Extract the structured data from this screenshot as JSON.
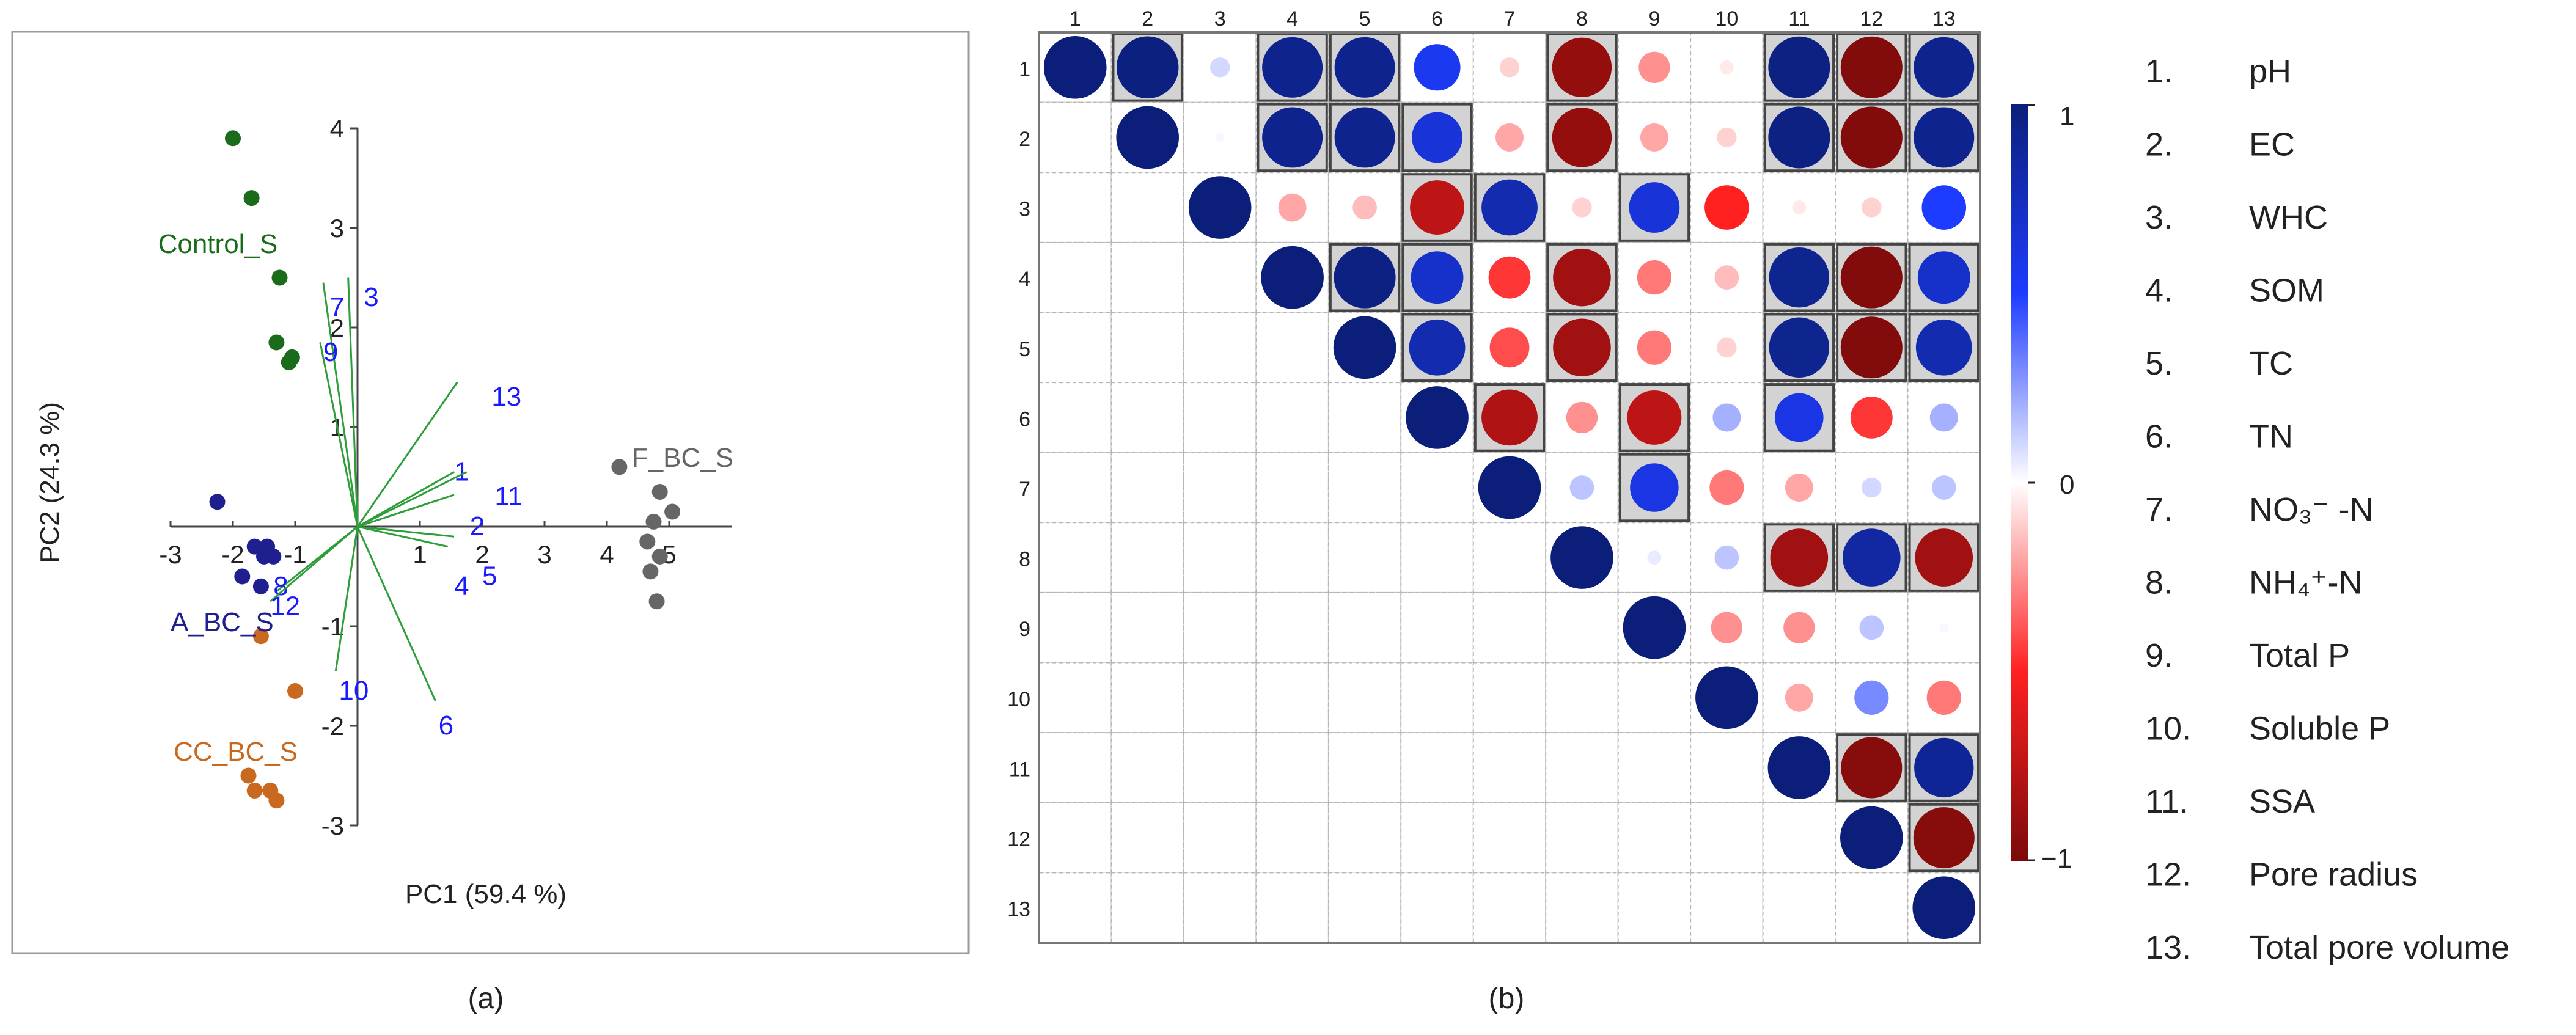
{
  "chart_data": [
    {
      "type": "scatter",
      "panel_label": "(a)",
      "xlabel": "PC1 (59.4 %)",
      "ylabel": "PC2 (24.3 %)",
      "xlim": [
        -3,
        6
      ],
      "ylim": [
        -3,
        4
      ],
      "x_ticks": [
        "-3",
        "-2",
        "-1",
        "1",
        "2",
        "3",
        "4",
        "5"
      ],
      "x_tick_values": [
        -3,
        -2,
        -1,
        1,
        2,
        3,
        4,
        5
      ],
      "y_ticks": [
        "4",
        "3",
        "2",
        "1",
        "-1",
        "-2",
        "-3"
      ],
      "y_tick_values": [
        4,
        3,
        2,
        1,
        -1,
        -2,
        -3
      ],
      "series": [
        {
          "name": "Control_S",
          "color": "#1a6b1a",
          "label_pos": [
            -3.2,
            2.75
          ],
          "points": [
            [
              -2.0,
              3.9
            ],
            [
              -1.7,
              3.3
            ],
            [
              -1.25,
              2.5
            ],
            [
              -1.3,
              1.85
            ],
            [
              -1.05,
              1.7
            ],
            [
              -1.1,
              1.65
            ]
          ]
        },
        {
          "name": "A_BC_S",
          "color": "#1f1f8f",
          "label_pos": [
            -3.0,
            -1.05
          ],
          "points": [
            [
              -2.25,
              0.25
            ],
            [
              -1.65,
              -0.2
            ],
            [
              -1.45,
              -0.2
            ],
            [
              -1.5,
              -0.3
            ],
            [
              -1.85,
              -0.5
            ],
            [
              -1.55,
              -0.6
            ],
            [
              -1.35,
              -0.3
            ]
          ]
        },
        {
          "name": "CC_BC_S",
          "color": "#c8691f",
          "label_pos": [
            -2.95,
            -2.35
          ],
          "points": [
            [
              -1.55,
              -1.1
            ],
            [
              -1.0,
              -1.65
            ],
            [
              -1.75,
              -2.5
            ],
            [
              -1.65,
              -2.65
            ],
            [
              -1.4,
              -2.65
            ],
            [
              -1.3,
              -2.75
            ]
          ]
        },
        {
          "name": "F_BC_S",
          "color": "#666666",
          "label_pos": [
            4.4,
            0.6
          ],
          "points": [
            [
              4.2,
              0.6
            ],
            [
              4.85,
              0.35
            ],
            [
              5.05,
              0.15
            ],
            [
              4.75,
              0.05
            ],
            [
              4.65,
              -0.15
            ],
            [
              4.85,
              -0.3
            ],
            [
              4.7,
              -0.45
            ],
            [
              4.8,
              -0.75
            ]
          ]
        }
      ],
      "loadings_color": "#2e9e3a",
      "loadings_label_color": "#1a1aff",
      "loadings": [
        {
          "label": "1",
          "end": [
            1.55,
            0.55
          ],
          "label_pos": [
            1.55,
            0.55
          ]
        },
        {
          "label": "2",
          "end": [
            1.55,
            0.32
          ],
          "label_pos": [
            1.8,
            0.0
          ]
        },
        {
          "label": "3",
          "end": [
            -0.15,
            2.5
          ],
          "label_pos": [
            0.1,
            2.3
          ]
        },
        {
          "label": "4",
          "end": [
            1.45,
            -0.2
          ],
          "label_pos": [
            1.55,
            -0.6
          ]
        },
        {
          "label": "5",
          "end": [
            1.55,
            -0.1
          ],
          "label_pos": [
            2.0,
            -0.5
          ]
        },
        {
          "label": "6",
          "end": [
            1.25,
            -1.75
          ],
          "label_pos": [
            1.3,
            -2.0
          ]
        },
        {
          "label": "7",
          "end": [
            -0.55,
            2.45
          ],
          "label_pos": [
            -0.45,
            2.2
          ]
        },
        {
          "label": "8",
          "end": [
            -1.3,
            -0.65
          ],
          "label_pos": [
            -1.35,
            -0.6
          ]
        },
        {
          "label": "9",
          "end": [
            -0.6,
            1.85
          ],
          "label_pos": [
            -0.55,
            1.75
          ]
        },
        {
          "label": "10",
          "end": [
            -0.35,
            -1.45
          ],
          "label_pos": [
            -0.3,
            -1.65
          ]
        },
        {
          "label": "11",
          "end": [
            1.75,
            0.55
          ],
          "label_pos": [
            2.2,
            0.3
          ]
        },
        {
          "label": "12",
          "end": [
            -1.4,
            -0.75
          ],
          "label_pos": [
            -1.4,
            -0.8
          ]
        },
        {
          "label": "13",
          "end": [
            1.6,
            1.45
          ],
          "label_pos": [
            2.15,
            1.3
          ]
        }
      ]
    },
    {
      "type": "heatmap",
      "panel_label": "(b)",
      "labels": [
        "1",
        "2",
        "3",
        "4",
        "5",
        "6",
        "7",
        "8",
        "9",
        "10",
        "11",
        "12",
        "13"
      ],
      "legend_title": "",
      "colorbar": {
        "max_label": "1",
        "mid_label": "0",
        "min_label": "−1",
        "colors": [
          "#0b1f7a",
          "#1e3cff",
          "#ffffff",
          "#ff2020",
          "#7a0a0a"
        ]
      },
      "significant_color": "#d3d3d3",
      "matrix": [
        [
          1,
          0.98,
          0.1,
          0.93,
          0.93,
          0.55,
          -0.1,
          -0.9,
          -0.25,
          -0.05,
          0.97,
          -0.97,
          0.93
        ],
        [
          null,
          1,
          0.02,
          0.93,
          0.93,
          0.65,
          -0.2,
          -0.9,
          -0.2,
          -0.1,
          0.97,
          -0.97,
          0.93
        ],
        [
          null,
          null,
          1,
          -0.2,
          -0.15,
          -0.75,
          0.8,
          -0.1,
          0.65,
          -0.5,
          -0.05,
          -0.1,
          0.5
        ],
        [
          null,
          null,
          null,
          1,
          0.97,
          0.7,
          -0.45,
          -0.85,
          -0.3,
          -0.15,
          0.92,
          -0.97,
          0.7
        ],
        [
          null,
          null,
          null,
          null,
          1,
          0.8,
          -0.4,
          -0.85,
          -0.3,
          -0.1,
          0.92,
          -0.97,
          0.8
        ],
        [
          null,
          null,
          null,
          null,
          null,
          1,
          -0.8,
          -0.25,
          -0.75,
          0.2,
          0.6,
          -0.45,
          0.2
        ],
        [
          null,
          null,
          null,
          null,
          null,
          null,
          1,
          0.15,
          0.6,
          -0.3,
          -0.2,
          0.1,
          0.15
        ],
        [
          null,
          null,
          null,
          null,
          null,
          null,
          null,
          1,
          0.05,
          0.15,
          -0.85,
          0.85,
          -0.85
        ],
        [
          null,
          null,
          null,
          null,
          null,
          null,
          null,
          null,
          1,
          -0.25,
          -0.25,
          0.15,
          0.02
        ],
        [
          null,
          null,
          null,
          null,
          null,
          null,
          null,
          null,
          null,
          1,
          -0.2,
          0.3,
          -0.3
        ],
        [
          null,
          null,
          null,
          null,
          null,
          null,
          null,
          null,
          null,
          null,
          1,
          -0.95,
          0.9
        ],
        [
          null,
          null,
          null,
          null,
          null,
          null,
          null,
          null,
          null,
          null,
          null,
          1,
          -0.95
        ],
        [
          null,
          null,
          null,
          null,
          null,
          null,
          null,
          null,
          null,
          null,
          null,
          null,
          1
        ]
      ],
      "significant": [
        [
          0,
          1,
          0,
          1,
          1,
          0,
          0,
          1,
          0,
          0,
          1,
          1,
          1
        ],
        [
          0,
          0,
          0,
          1,
          1,
          1,
          0,
          1,
          0,
          0,
          1,
          1,
          1
        ],
        [
          0,
          0,
          0,
          0,
          0,
          1,
          1,
          0,
          1,
          0,
          0,
          0,
          0
        ],
        [
          0,
          0,
          0,
          0,
          1,
          1,
          0,
          1,
          0,
          0,
          1,
          1,
          1
        ],
        [
          0,
          0,
          0,
          0,
          0,
          1,
          0,
          1,
          0,
          0,
          1,
          1,
          1
        ],
        [
          0,
          0,
          0,
          0,
          0,
          0,
          1,
          0,
          1,
          0,
          1,
          0,
          0
        ],
        [
          0,
          0,
          0,
          0,
          0,
          0,
          0,
          0,
          1,
          0,
          0,
          0,
          0
        ],
        [
          0,
          0,
          0,
          0,
          0,
          0,
          0,
          0,
          0,
          0,
          1,
          1,
          1
        ],
        [
          0,
          0,
          0,
          0,
          0,
          0,
          0,
          0,
          0,
          0,
          0,
          0,
          0
        ],
        [
          0,
          0,
          0,
          0,
          0,
          0,
          0,
          0,
          0,
          0,
          0,
          0,
          0
        ],
        [
          0,
          0,
          0,
          0,
          0,
          0,
          0,
          0,
          0,
          0,
          0,
          1,
          1
        ],
        [
          0,
          0,
          0,
          0,
          0,
          0,
          0,
          0,
          0,
          0,
          0,
          0,
          1
        ],
        [
          0,
          0,
          0,
          0,
          0,
          0,
          0,
          0,
          0,
          0,
          0,
          0,
          0
        ]
      ],
      "variables": [
        {
          "num": "1.",
          "name": "pH"
        },
        {
          "num": "2.",
          "name": "EC"
        },
        {
          "num": "3.",
          "name": "WHC"
        },
        {
          "num": "4.",
          "name": "SOM"
        },
        {
          "num": "5.",
          "name": "TC"
        },
        {
          "num": "6.",
          "name": "TN"
        },
        {
          "num": "7.",
          "name": "NO₃⁻ -N"
        },
        {
          "num": "8.",
          "name": "NH₄⁺-N"
        },
        {
          "num": "9.",
          "name": "Total P"
        },
        {
          "num": "10.",
          "name": "Soluble P"
        },
        {
          "num": "11.",
          "name": "SSA"
        },
        {
          "num": "12.",
          "name": "Pore radius"
        },
        {
          "num": "13.",
          "name": "Total pore volume"
        }
      ]
    }
  ]
}
